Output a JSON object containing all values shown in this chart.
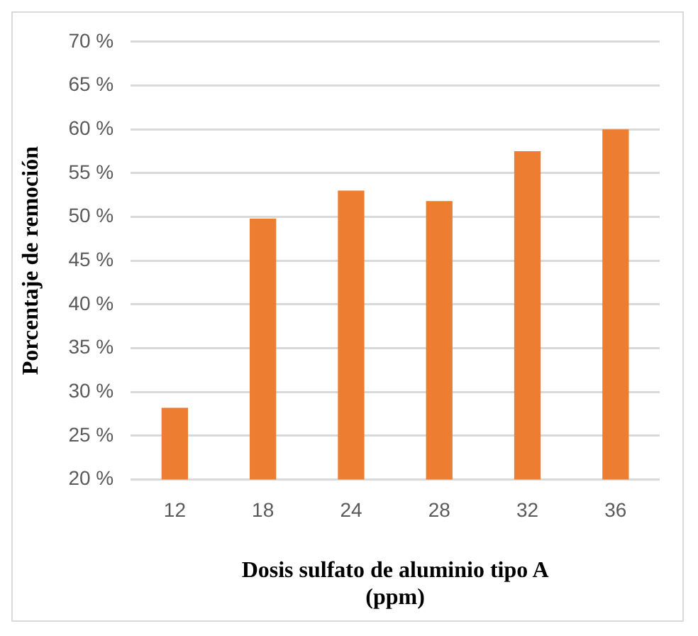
{
  "chart_data": {
    "type": "bar",
    "xlabel": "Dosis sulfato de aluminio tipo A (ppm)",
    "ylabel": "Porcentaje de remoción",
    "categories": [
      "12",
      "18",
      "24",
      "28",
      "32",
      "36"
    ],
    "values": [
      28.2,
      49.8,
      53,
      51.8,
      57.5,
      60
    ],
    "color": "#ed7d31",
    "ylim": [
      20,
      70
    ],
    "yticks": [
      {
        "value": 20,
        "label": "20 %"
      },
      {
        "value": 25,
        "label": "25 %"
      },
      {
        "value": 30,
        "label": "30 %"
      },
      {
        "value": 35,
        "label": "35 %"
      },
      {
        "value": 40,
        "label": "40 %"
      },
      {
        "value": 45,
        "label": "45 %"
      },
      {
        "value": 50,
        "label": "50 %"
      },
      {
        "value": 55,
        "label": "55 %"
      },
      {
        "value": 60,
        "label": "60 %"
      },
      {
        "value": 65,
        "label": "65 %"
      },
      {
        "value": 70,
        "label": "70 %"
      }
    ],
    "grid": "y",
    "legend": false
  }
}
